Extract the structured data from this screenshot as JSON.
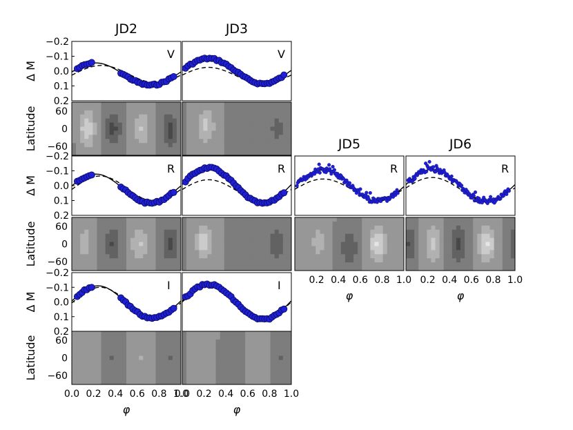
{
  "chart_data": {
    "type": "scatter",
    "description_words": {
      "x_quantity": "phase",
      "map_quantity": "latitude vs phase surface brightness map"
    },
    "x_axis": {
      "label": "φ",
      "range": [
        0.0,
        1.0
      ],
      "ticks_left_panels": [
        "0.0",
        "0.2",
        "0.4",
        "0.6",
        "0.8",
        "1.0"
      ],
      "ticks_right_panels": [
        "0.2",
        "0.4",
        "0.6",
        "0.8",
        "1.0"
      ]
    },
    "light_curve_y_axis": {
      "label": "Δ M",
      "range": [
        0.2,
        -0.2
      ],
      "inverted": true,
      "ticks": [
        "−0.2",
        "−0.1",
        "0.0",
        "0.1",
        "0.2"
      ]
    },
    "map_y_axis": {
      "label": "Latitude",
      "range": [
        -90,
        90
      ],
      "ticks": [
        "60",
        "0",
        "−60"
      ]
    },
    "columns": [
      "JD2",
      "JD3",
      "JD5",
      "JD6"
    ],
    "colors": {
      "points": "#1f1fd6",
      "point_edge": "#0a0a5a",
      "model_line": "#000000"
    },
    "panels": [
      {
        "column": "JD2",
        "band": "V",
        "row": 0,
        "col": 0,
        "marker": "large",
        "solid": {
          "offset": 0.02,
          "amplitude": 0.075,
          "phase_of_max": 0.22
        },
        "dashed": {
          "offset": 0.02,
          "amplitude": 0.058,
          "phase_of_max": 0.27
        },
        "phase_coverage": [
          [
            0.05,
            0.2
          ],
          [
            0.45,
            0.95
          ]
        ],
        "map": {
          "spots": [
            [
              0.14,
              0.0,
              0.9
            ],
            [
              0.38,
              0.0,
              0.18
            ],
            [
              0.64,
              0.0,
              0.8
            ],
            [
              0.9,
              -0.05,
              0.16
            ]
          ]
        }
      },
      {
        "column": "JD3",
        "band": "V",
        "row": 0,
        "col": 1,
        "marker": "large",
        "solid": {
          "offset": 0.0,
          "amplitude": 0.085,
          "phase_of_max": 0.24
        },
        "dashed": {
          "offset": 0.03,
          "amplitude": 0.055,
          "phase_of_max": 0.24
        },
        "phase_coverage": [
          [
            0.03,
            0.95
          ]
        ],
        "map": {
          "spots": [
            [
              0.22,
              0.1,
              0.82
            ],
            [
              0.55,
              0.0,
              0.38
            ],
            [
              0.87,
              0.0,
              0.3
            ]
          ]
        }
      },
      {
        "column": "JD2",
        "band": "R",
        "row": 1,
        "col": 0,
        "marker": "large",
        "solid": {
          "offset": 0.02,
          "amplitude": 0.098,
          "phase_of_max": 0.22
        },
        "dashed": {
          "offset": 0.02,
          "amplitude": 0.085,
          "phase_of_max": 0.26
        },
        "phase_coverage": [
          [
            0.05,
            0.2
          ],
          [
            0.45,
            0.95
          ]
        ],
        "map": {
          "spots": [
            [
              0.12,
              0.05,
              0.72
            ],
            [
              0.37,
              0.0,
              0.2
            ],
            [
              0.62,
              0.0,
              0.8
            ],
            [
              0.9,
              0.0,
              0.18
            ]
          ]
        }
      },
      {
        "column": "JD3",
        "band": "R",
        "row": 1,
        "col": 1,
        "marker": "large",
        "solid": {
          "offset": 0.0,
          "amplitude": 0.12,
          "phase_of_max": 0.24
        },
        "dashed": {
          "offset": 0.03,
          "amplitude": 0.07,
          "phase_of_max": 0.24
        },
        "phase_coverage": [
          [
            0.03,
            0.95
          ]
        ],
        "map": {
          "spots": [
            [
              0.2,
              0.1,
              0.88
            ],
            [
              0.55,
              0.0,
              0.42
            ],
            [
              0.87,
              0.0,
              0.25
            ]
          ]
        }
      },
      {
        "column": "JD5",
        "band": "R",
        "row": 1,
        "col": 2,
        "marker": "small",
        "solid": {
          "offset": 0.0,
          "amplitude": 0.105,
          "phase_of_max": 0.26
        },
        "dashed": {
          "offset": 0.02,
          "amplitude": 0.065,
          "phase_of_max": 0.26
        },
        "phase_coverage": [
          [
            0.02,
            0.95
          ]
        ],
        "map": {
          "spots": [
            [
              0.22,
              0.05,
              0.72
            ],
            [
              0.5,
              -0.15,
              0.22
            ],
            [
              0.76,
              0.0,
              0.95
            ]
          ]
        }
      },
      {
        "column": "JD6",
        "band": "R",
        "row": 1,
        "col": 3,
        "marker": "small",
        "solid": {
          "offset": 0.0,
          "amplitude": 0.11,
          "phase_of_max": 0.24
        },
        "dashed": {
          "offset": 0.02,
          "amplitude": 0.075,
          "phase_of_max": 0.24
        },
        "phase_coverage": [
          [
            0.02,
            0.95
          ]
        ],
        "map": {
          "spots": [
            [
              0.25,
              0.0,
              0.85
            ],
            [
              0.48,
              0.0,
              0.15
            ],
            [
              0.74,
              0.0,
              0.95
            ],
            [
              0.02,
              0.0,
              0.2
            ]
          ]
        }
      },
      {
        "column": "JD2",
        "band": "I",
        "row": 2,
        "col": 0,
        "marker": "large",
        "solid": {
          "offset": 0.0,
          "amplitude": 0.11,
          "phase_of_max": 0.24
        },
        "dashed": {
          "offset": 0.0,
          "amplitude": 0.1,
          "phase_of_max": 0.26
        },
        "phase_coverage": [
          [
            0.05,
            0.2
          ],
          [
            0.45,
            0.95
          ]
        ],
        "map": {
          "spots": [
            [
              0.13,
              0.0,
              0.62
            ],
            [
              0.38,
              0.0,
              0.35
            ],
            [
              0.64,
              0.0,
              0.65
            ],
            [
              0.9,
              0.0,
              0.35
            ]
          ]
        }
      },
      {
        "column": "JD3",
        "band": "I",
        "row": 2,
        "col": 1,
        "marker": "large",
        "solid": {
          "offset": 0.0,
          "amplitude": 0.12,
          "phase_of_max": 0.24
        },
        "dashed": {
          "offset": 0.0,
          "amplitude": 0.11,
          "phase_of_max": 0.25
        },
        "phase_coverage": [
          [
            0.03,
            0.95
          ]
        ],
        "map": {
          "spots": [
            [
              0.2,
              0.05,
              0.6
            ],
            [
              0.45,
              0.0,
              0.4
            ],
            [
              0.7,
              0.0,
              0.6
            ],
            [
              0.9,
              0.0,
              0.35
            ]
          ]
        }
      }
    ]
  }
}
